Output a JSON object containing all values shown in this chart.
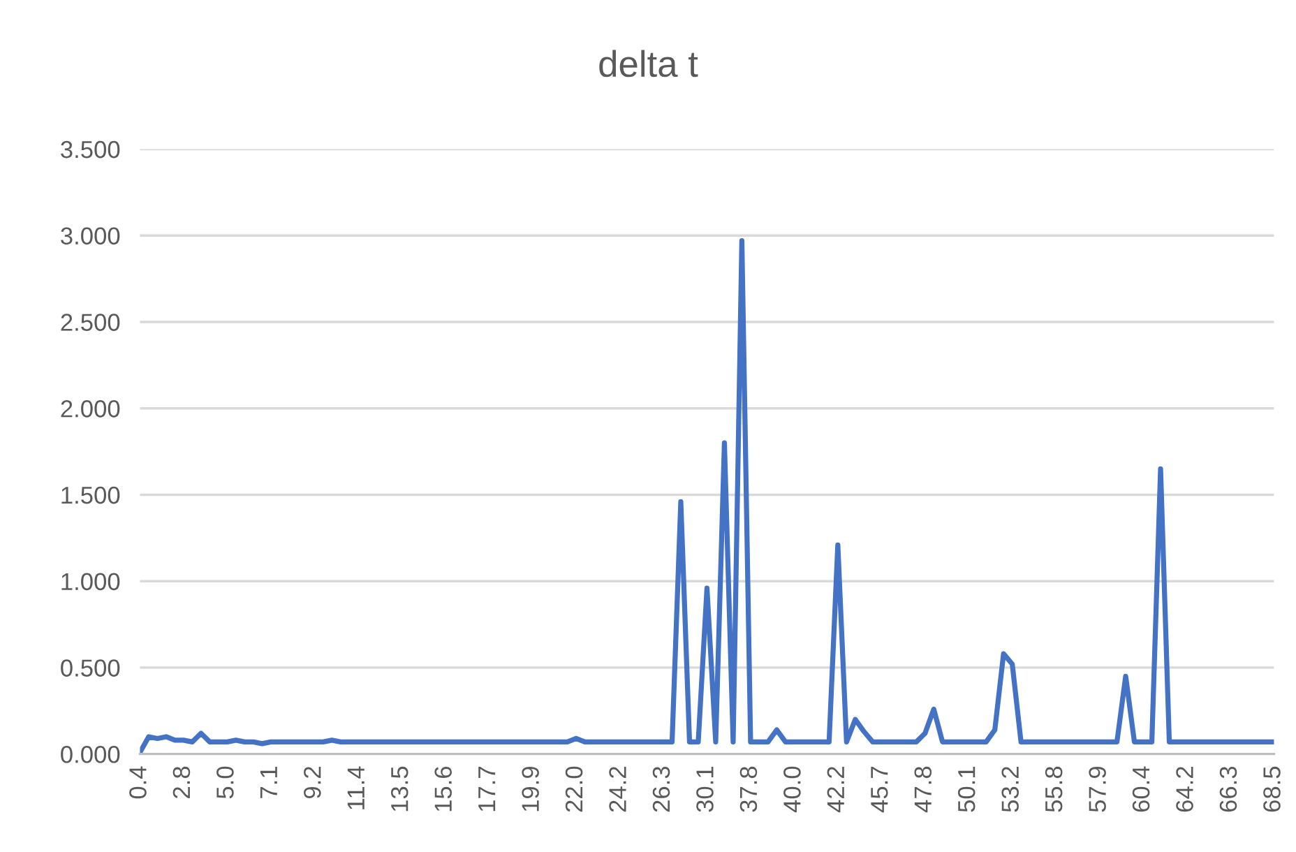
{
  "chart_data": {
    "type": "line",
    "title": "delta t",
    "categories": [
      "0.4",
      null,
      null,
      null,
      null,
      "2.8",
      null,
      null,
      null,
      null,
      "5.0",
      null,
      null,
      null,
      null,
      "7.1",
      null,
      null,
      null,
      null,
      "9.2",
      null,
      null,
      null,
      null,
      "11.4",
      null,
      null,
      null,
      null,
      "13.5",
      null,
      null,
      null,
      null,
      "15.6",
      null,
      null,
      null,
      null,
      "17.7",
      null,
      null,
      null,
      null,
      "19.9",
      null,
      null,
      null,
      null,
      "22.0",
      null,
      null,
      null,
      null,
      "24.2",
      null,
      null,
      null,
      null,
      "26.3",
      null,
      null,
      null,
      null,
      "30.1",
      null,
      null,
      null,
      null,
      "37.8",
      null,
      null,
      null,
      null,
      "40.0",
      null,
      null,
      null,
      null,
      "42.2",
      null,
      null,
      null,
      null,
      "45.7",
      null,
      null,
      null,
      null,
      "47.8",
      null,
      null,
      null,
      null,
      "50.1",
      null,
      null,
      null,
      null,
      "53.2",
      null,
      null,
      null,
      null,
      "55.8",
      null,
      null,
      null,
      null,
      "57.9",
      null,
      null,
      null,
      null,
      "60.4",
      null,
      null,
      null,
      null,
      "64.2",
      null,
      null,
      null,
      null,
      "66.3",
      null,
      null,
      null,
      null,
      "68.5"
    ],
    "series": [
      {
        "color": "#4472c4",
        "values": [
          0.01,
          0.1,
          0.09,
          0.1,
          0.08,
          0.08,
          0.07,
          0.12,
          0.07,
          0.07,
          0.07,
          0.08,
          0.07,
          0.07,
          0.06,
          0.07,
          0.07,
          0.07,
          0.07,
          0.07,
          0.07,
          0.07,
          0.08,
          0.07,
          0.07,
          0.07,
          0.07,
          0.07,
          0.07,
          0.07,
          0.07,
          0.07,
          0.07,
          0.07,
          0.07,
          0.07,
          0.07,
          0.07,
          0.07,
          0.07,
          0.07,
          0.07,
          0.07,
          0.07,
          0.07,
          0.07,
          0.07,
          0.07,
          0.07,
          0.07,
          0.09,
          0.07,
          0.07,
          0.07,
          0.07,
          0.07,
          0.07,
          0.07,
          0.07,
          0.07,
          0.07,
          0.07,
          1.46,
          0.07,
          0.07,
          0.96,
          0.07,
          1.8,
          0.07,
          2.97,
          0.07,
          0.07,
          0.07,
          0.14,
          0.07,
          0.07,
          0.07,
          0.07,
          0.07,
          0.07,
          1.21,
          0.07,
          0.2,
          0.13,
          0.07,
          0.07,
          0.07,
          0.07,
          0.07,
          0.07,
          0.12,
          0.26,
          0.07,
          0.07,
          0.07,
          0.07,
          0.07,
          0.07,
          0.14,
          0.58,
          0.52,
          0.07,
          0.07,
          0.07,
          0.07,
          0.07,
          0.07,
          0.07,
          0.07,
          0.07,
          0.07,
          0.07,
          0.07,
          0.45,
          0.07,
          0.07,
          0.07,
          1.65,
          0.07,
          0.07,
          0.07,
          0.07,
          0.07,
          0.07,
          0.07,
          0.07,
          0.07,
          0.07,
          0.07,
          0.07,
          0.07
        ]
      }
    ],
    "ylim": [
      0,
      3.5
    ],
    "yticks": [
      {
        "value": 0,
        "label": "0.000"
      },
      {
        "value": 0.5,
        "label": "0.500"
      },
      {
        "value": 1,
        "label": "1.000"
      },
      {
        "value": 1.5,
        "label": "1.500"
      },
      {
        "value": 2,
        "label": "2.000"
      },
      {
        "value": 2.5,
        "label": "2.500"
      },
      {
        "value": 3,
        "label": "3.000"
      },
      {
        "value": 3.5,
        "label": "3.500"
      }
    ],
    "grid": "y",
    "marker": "none",
    "line_style": "solid"
  }
}
